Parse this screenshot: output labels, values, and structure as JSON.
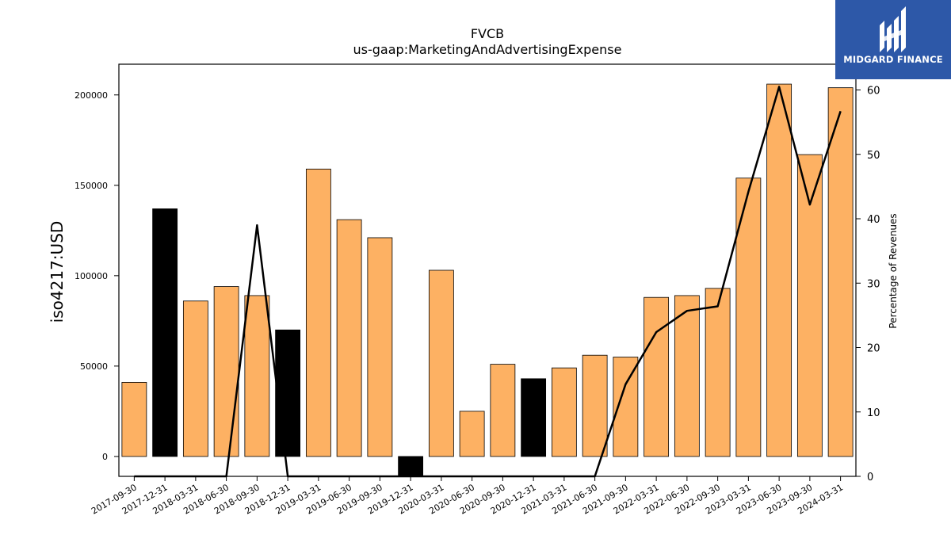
{
  "chart_data": {
    "type": "bar",
    "title": "FVCB",
    "subtitle": "us-gaap:MarketingAndAdvertisingExpense",
    "ylabel": "iso4217:USD",
    "y2label": "Percentage of Revenues",
    "ylim": [
      -11000,
      217000
    ],
    "y2lim": [
      0,
      64
    ],
    "yticks": [
      0,
      50000,
      100000,
      150000,
      200000
    ],
    "y2ticks": [
      0,
      10,
      20,
      30,
      40,
      50,
      60
    ],
    "grid": false,
    "categories": [
      "2017-09-30",
      "2017-12-31",
      "2018-03-31",
      "2018-06-30",
      "2018-09-30",
      "2018-12-31",
      "2019-03-31",
      "2019-06-30",
      "2019-09-30",
      "2019-12-31",
      "2020-03-31",
      "2020-06-30",
      "2020-09-30",
      "2020-12-31",
      "2021-03-31",
      "2021-06-30",
      "2021-09-30",
      "2022-03-31",
      "2022-06-30",
      "2022-09-30",
      "2023-03-31",
      "2023-06-30",
      "2023-09-30",
      "2024-03-31"
    ],
    "series": [
      {
        "type": "bar",
        "values": [
          41000,
          137000,
          86000,
          94000,
          89000,
          70000,
          159000,
          131000,
          121000,
          -11000,
          103000,
          25000,
          51000,
          43000,
          49000,
          56000,
          55000,
          88000,
          89000,
          93000,
          154000,
          206000,
          167000,
          204000
        ],
        "highlight": [
          false,
          true,
          false,
          false,
          false,
          true,
          false,
          false,
          false,
          true,
          false,
          false,
          false,
          true,
          false,
          false,
          false,
          false,
          false,
          false,
          false,
          false,
          false,
          false
        ]
      },
      {
        "type": "line",
        "axis": "right",
        "values": [
          0,
          0,
          0,
          0,
          39,
          0,
          0,
          0,
          0,
          0,
          0,
          0,
          0,
          0,
          0,
          0,
          14.3,
          22.4,
          25.7,
          26.4,
          44.2,
          60.5,
          42.2,
          56.7
        ]
      }
    ],
    "colors": {
      "bar": "#fdb163",
      "highlight": "#000000",
      "line": "#000000",
      "logo_bg": "#2d58a8"
    }
  },
  "logo": {
    "text": "MIDGARD FINANCE",
    "icon": "midgard-logo-icon"
  }
}
